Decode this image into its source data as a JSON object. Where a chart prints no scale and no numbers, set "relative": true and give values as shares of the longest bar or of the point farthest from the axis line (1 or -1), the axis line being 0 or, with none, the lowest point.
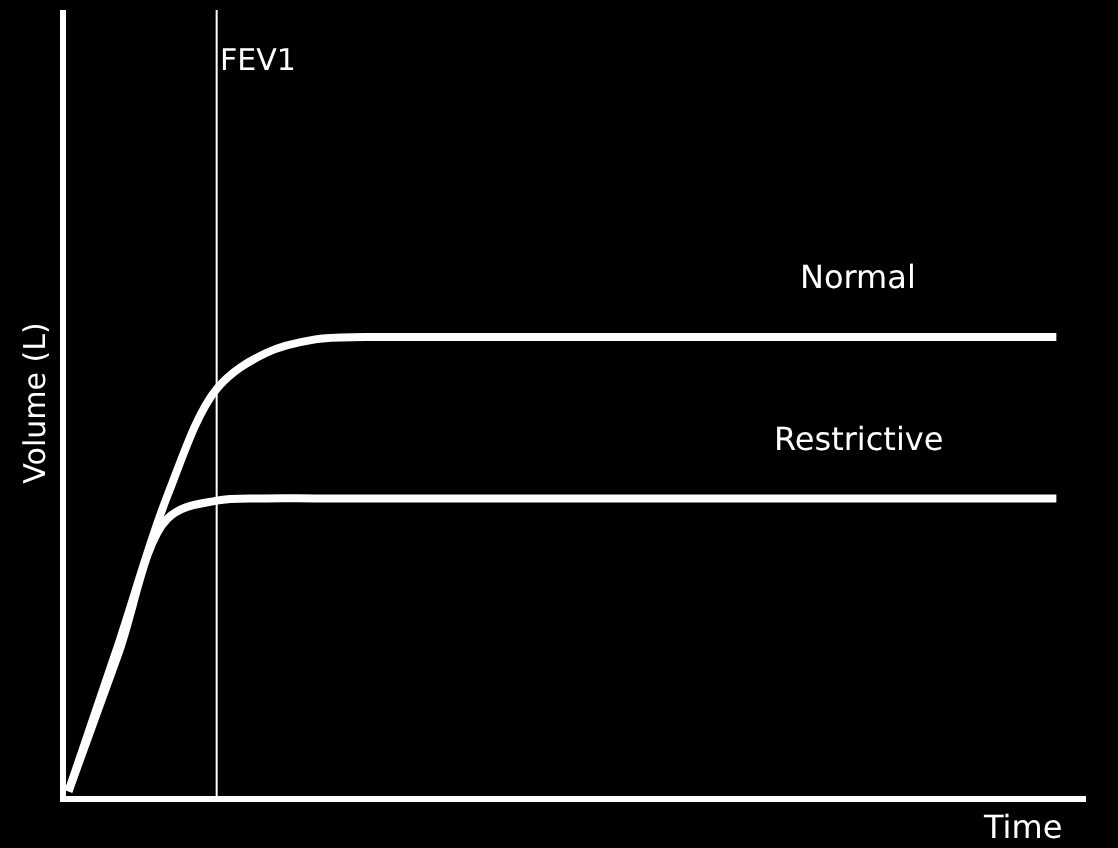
{
  "chart_data": {
    "type": "line",
    "relative": true,
    "xlabel": "Time",
    "ylabel": "Volume (L)",
    "categories": [
      null,
      null,
      null,
      null,
      null,
      null,
      null,
      null,
      null,
      null,
      null,
      null,
      null,
      null,
      null,
      null,
      null,
      null,
      null,
      null,
      null
    ],
    "series": [
      {
        "name": "Normal",
        "color": "#ffffff",
        "values": [
          0,
          0.32,
          0.65,
          0.886,
          0.965,
          0.995,
          1,
          1,
          1,
          1,
          1,
          1,
          1,
          1,
          1,
          1,
          1,
          1,
          1,
          1,
          1
        ]
      },
      {
        "name": "Restrictive",
        "color": "#ffffff",
        "values": [
          0,
          0.3,
          0.6,
          0.64,
          0.645,
          0.645,
          0.645,
          0.645,
          0.645,
          0.645,
          0.645,
          0.645,
          0.645,
          0.645,
          0.645,
          0.645,
          0.645,
          0.645,
          0.645,
          0.645,
          0.645
        ]
      }
    ],
    "annotations": [
      "FEV1"
    ],
    "legend": false,
    "grid": false,
    "marker": "none",
    "line_style": "solid"
  }
}
